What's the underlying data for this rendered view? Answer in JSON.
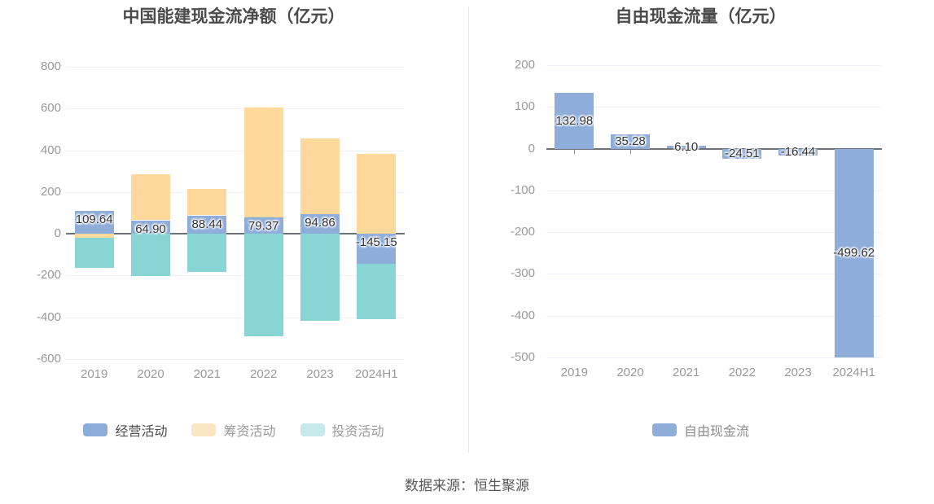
{
  "chart_data": [
    {
      "type": "bar",
      "stacked": true,
      "title": "中国能建现金流净额（亿元）",
      "categories": [
        "2019",
        "2020",
        "2021",
        "2022",
        "2023",
        "2024H1"
      ],
      "series": [
        {
          "name": "经营活动",
          "color": "#8fadd9",
          "legend_color": "#8fadd9",
          "legend_text_color": "#4d4d4d",
          "values": [
            109.64,
            64.9,
            88.44,
            79.37,
            94.86,
            -145.15
          ],
          "labels": [
            "109.64",
            "64.90",
            "88.44",
            "79.37",
            "94.86",
            "-145.15"
          ]
        },
        {
          "name": "筹资活动",
          "color": "#fed99b",
          "legend_color": "#fbe6c3",
          "legend_text_color": "#999999",
          "values": [
            -20,
            220,
            127,
            527,
            362,
            383
          ],
          "values_estimated": true
        },
        {
          "name": "投资活动",
          "color": "#89d5d5",
          "legend_color": "#c9eaea",
          "legend_text_color": "#999999",
          "values": [
            -143,
            -202,
            -184,
            -492,
            -417,
            -265
          ],
          "values_estimated": true
        }
      ],
      "ylim": [
        -600,
        800
      ],
      "ytick_interval": 200,
      "yticks": [
        "800",
        "600",
        "400",
        "200",
        "0",
        "-200",
        "-400",
        "-600"
      ],
      "label_position": "insideTop",
      "legend_position": "bottom",
      "grid": true
    },
    {
      "type": "bar",
      "stacked": false,
      "title": "自由现金流量（亿元）",
      "categories": [
        "2019",
        "2020",
        "2021",
        "2022",
        "2023",
        "2024H1"
      ],
      "series": [
        {
          "name": "自由现金流",
          "color": "#8fadd9",
          "legend_color": "#8fadd9",
          "legend_text_color": "#8c8c8c",
          "values": [
            132.98,
            35.28,
            6.1,
            -24.51,
            -16.44,
            -499.62
          ],
          "labels": [
            "132.98",
            "35.28",
            "6.10",
            "-24.51",
            "-16.44",
            "-499.62"
          ]
        }
      ],
      "ylim": [
        -500,
        200
      ],
      "ytick_interval": 100,
      "yticks": [
        "200",
        "100",
        "0",
        "-100",
        "-200",
        "-300",
        "-400",
        "-500"
      ],
      "label_position": "inside",
      "legend_position": "bottom",
      "grid": true
    }
  ],
  "source": {
    "text": "数据来源：恒生聚源"
  },
  "colors": {
    "title": "#4a4a4a",
    "axis_label": "#999999",
    "data_label": "#333333",
    "zero_line": "#6e7177",
    "grid_line": "#edf1f9",
    "divider": "#e7e7e7",
    "source_text": "#585858"
  }
}
